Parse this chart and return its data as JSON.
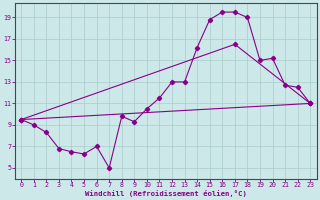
{
  "xlabel": "Windchill (Refroidissement éolien,°C)",
  "bg_color": "#cce8e8",
  "line_color": "#880088",
  "spine_color": "#444466",
  "grid_color": "#aacccc",
  "xlim_min": -0.5,
  "xlim_max": 23.5,
  "ylim_min": 4.0,
  "ylim_max": 20.3,
  "xticks": [
    0,
    1,
    2,
    3,
    4,
    5,
    6,
    7,
    8,
    9,
    10,
    11,
    12,
    13,
    14,
    15,
    16,
    17,
    18,
    19,
    20,
    21,
    22,
    23
  ],
  "yticks": [
    5,
    7,
    9,
    11,
    13,
    15,
    17,
    19
  ],
  "curve1_x": [
    0,
    1,
    2,
    3,
    4,
    5,
    6,
    7,
    8,
    9,
    10,
    11,
    12,
    13,
    14,
    15,
    16,
    17,
    18,
    19,
    20,
    21,
    22,
    23
  ],
  "curve1_y": [
    9.5,
    9.0,
    8.3,
    6.8,
    6.5,
    6.3,
    7.0,
    5.0,
    9.8,
    9.3,
    10.5,
    11.5,
    13.0,
    13.0,
    16.2,
    18.8,
    19.5,
    19.5,
    19.0,
    15.0,
    15.2,
    12.7,
    12.5,
    11.0
  ],
  "curve2_x": [
    0,
    17,
    23
  ],
  "curve2_y": [
    9.5,
    16.5,
    11.0
  ],
  "curve3_x": [
    0,
    23
  ],
  "curve3_y": [
    9.5,
    11.0
  ],
  "tick_fontsize": 4.8,
  "xlabel_fontsize": 5.2,
  "marker_size": 2.2,
  "line_width": 0.8
}
